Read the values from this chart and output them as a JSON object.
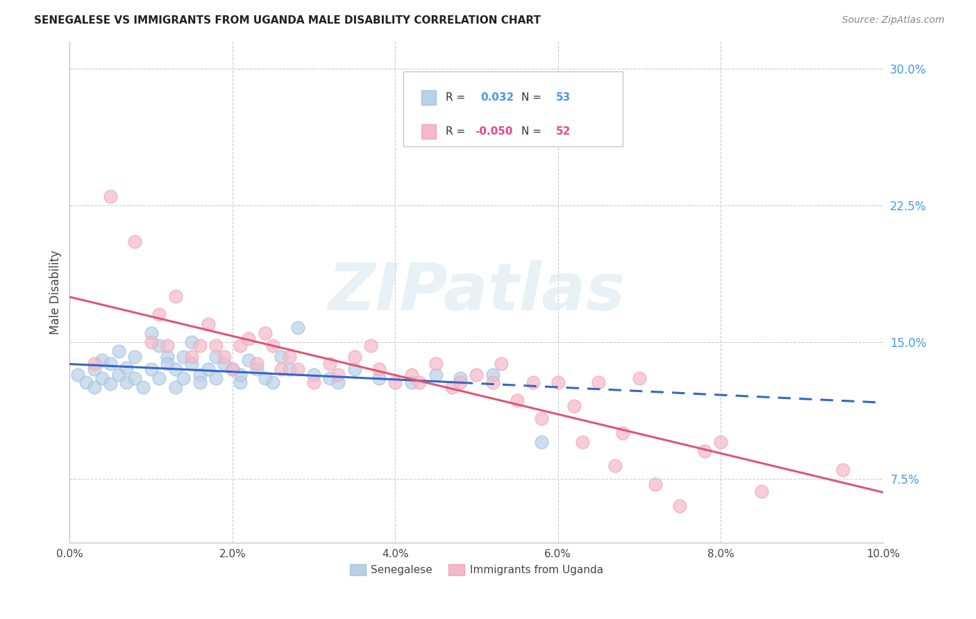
{
  "title": "SENEGALESE VS IMMIGRANTS FROM UGANDA MALE DISABILITY CORRELATION CHART",
  "source": "Source: ZipAtlas.com",
  "ylabel": "Male Disability",
  "yticks": [
    0.075,
    0.15,
    0.225,
    0.3
  ],
  "ytick_labels": [
    "7.5%",
    "15.0%",
    "22.5%",
    "30.0%"
  ],
  "xticks": [
    0.0,
    0.02,
    0.04,
    0.06,
    0.08,
    0.1
  ],
  "xtick_labels": [
    "0.0%",
    "2.0%",
    "4.0%",
    "6.0%",
    "8.0%",
    "10.0%"
  ],
  "blue_color": "#A8C4E0",
  "pink_color": "#F4A8B8",
  "blue_line_color": "#3366CC",
  "pink_line_color": "#E05575",
  "blue_fill": "#B8D0E8",
  "pink_fill": "#F4B8C8",
  "watermark_text": "ZIPatlas",
  "r_blue": "0.032",
  "n_blue": "53",
  "r_pink": "-0.050",
  "n_pink": "52",
  "senegalese_x": [
    0.001,
    0.002,
    0.003,
    0.003,
    0.004,
    0.004,
    0.005,
    0.005,
    0.006,
    0.006,
    0.007,
    0.007,
    0.008,
    0.008,
    0.009,
    0.01,
    0.01,
    0.011,
    0.011,
    0.012,
    0.012,
    0.013,
    0.013,
    0.014,
    0.014,
    0.015,
    0.015,
    0.016,
    0.016,
    0.017,
    0.018,
    0.018,
    0.019,
    0.02,
    0.021,
    0.021,
    0.022,
    0.023,
    0.024,
    0.025,
    0.026,
    0.027,
    0.028,
    0.03,
    0.032,
    0.033,
    0.035,
    0.038,
    0.042,
    0.045,
    0.048,
    0.052,
    0.058
  ],
  "senegalese_y": [
    0.132,
    0.128,
    0.135,
    0.125,
    0.13,
    0.14,
    0.127,
    0.138,
    0.132,
    0.145,
    0.128,
    0.136,
    0.142,
    0.13,
    0.125,
    0.155,
    0.135,
    0.148,
    0.13,
    0.142,
    0.138,
    0.135,
    0.125,
    0.13,
    0.142,
    0.138,
    0.15,
    0.132,
    0.128,
    0.135,
    0.13,
    0.142,
    0.138,
    0.135,
    0.128,
    0.132,
    0.14,
    0.135,
    0.13,
    0.128,
    0.142,
    0.135,
    0.158,
    0.132,
    0.13,
    0.128,
    0.135,
    0.13,
    0.128,
    0.132,
    0.13,
    0.132,
    0.095
  ],
  "uganda_x": [
    0.003,
    0.005,
    0.008,
    0.01,
    0.011,
    0.012,
    0.013,
    0.015,
    0.016,
    0.017,
    0.018,
    0.019,
    0.02,
    0.021,
    0.022,
    0.023,
    0.024,
    0.025,
    0.026,
    0.027,
    0.028,
    0.03,
    0.032,
    0.033,
    0.035,
    0.037,
    0.038,
    0.04,
    0.042,
    0.043,
    0.045,
    0.047,
    0.048,
    0.05,
    0.052,
    0.053,
    0.055,
    0.057,
    0.058,
    0.06,
    0.062,
    0.063,
    0.065,
    0.067,
    0.068,
    0.07,
    0.072,
    0.075,
    0.078,
    0.08,
    0.085,
    0.095
  ],
  "uganda_y": [
    0.138,
    0.23,
    0.205,
    0.15,
    0.165,
    0.148,
    0.175,
    0.142,
    0.148,
    0.16,
    0.148,
    0.142,
    0.135,
    0.148,
    0.152,
    0.138,
    0.155,
    0.148,
    0.135,
    0.142,
    0.135,
    0.128,
    0.138,
    0.132,
    0.142,
    0.148,
    0.135,
    0.128,
    0.132,
    0.128,
    0.138,
    0.125,
    0.128,
    0.132,
    0.128,
    0.138,
    0.118,
    0.128,
    0.108,
    0.128,
    0.115,
    0.095,
    0.128,
    0.082,
    0.1,
    0.13,
    0.072,
    0.06,
    0.09,
    0.095,
    0.068,
    0.08
  ]
}
